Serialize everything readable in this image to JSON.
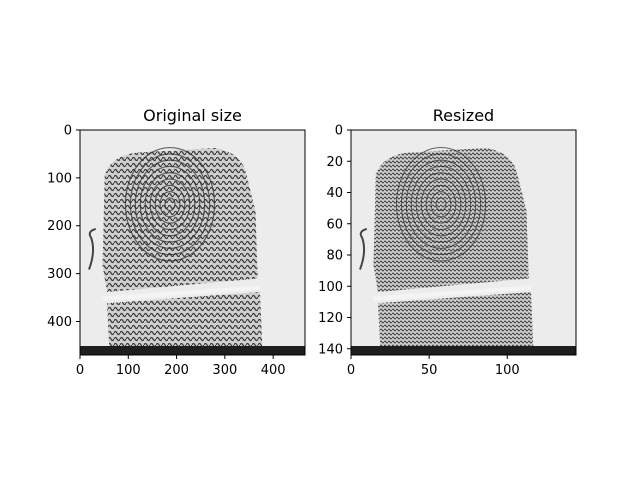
{
  "chart_data": [
    {
      "type": "image",
      "title": "Original size",
      "xlim": [
        0,
        466
      ],
      "ylim": [
        470,
        0
      ],
      "xticks": [
        0,
        100,
        200,
        300,
        400
      ],
      "yticks": [
        0,
        100,
        200,
        300,
        400
      ],
      "image": "grayscale fingerprint card scan"
    },
    {
      "type": "image",
      "title": "Resized",
      "xlim": [
        0,
        144
      ],
      "ylim": [
        144,
        0
      ],
      "xticks": [
        0,
        50,
        100
      ],
      "yticks": [
        0,
        20,
        40,
        60,
        80,
        100,
        120,
        140
      ],
      "image": "grayscale fingerprint card scan (downsampled)"
    }
  ]
}
